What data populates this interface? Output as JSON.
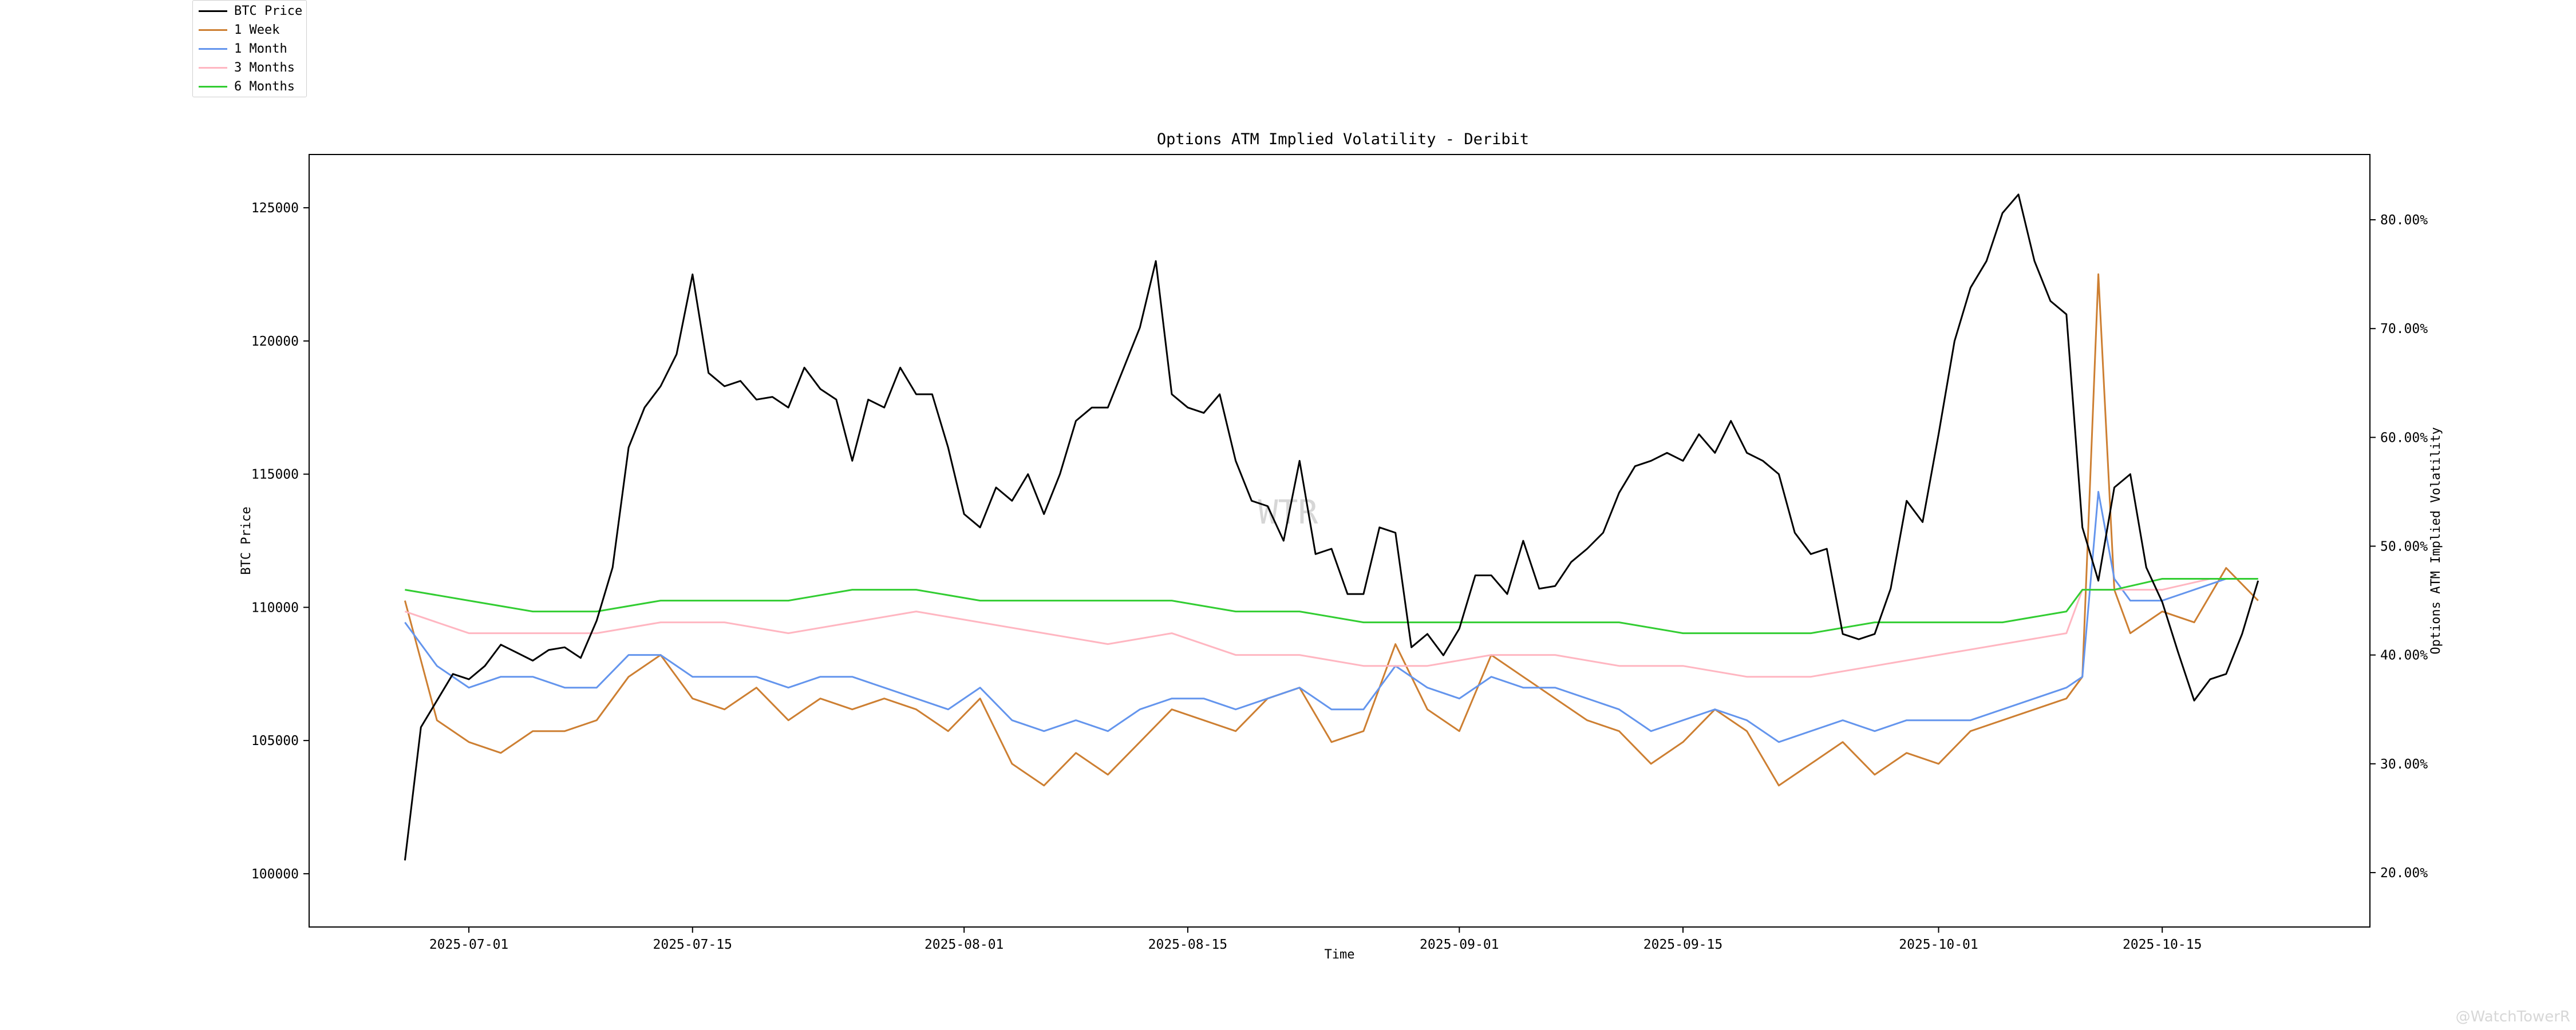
{
  "chart_data": {
    "type": "line",
    "title": "Options ATM Implied Volatility - Deribit",
    "xlabel": "Time",
    "ylabel": "BTC Price",
    "y2label": "Options ATM Implied Volatility",
    "watermark": "WTR",
    "corner_watermark": "@WatchTowerR",
    "x_ticks": [
      "2025-07-01",
      "2025-07-15",
      "2025-08-01",
      "2025-08-15",
      "2025-09-01",
      "2025-09-15",
      "2025-10-01",
      "2025-10-15"
    ],
    "xlim": [
      "2025-06-21",
      "2025-10-28"
    ],
    "ylim": [
      98000,
      127000
    ],
    "y_ticks": [
      "100000",
      "105000",
      "110000",
      "115000",
      "120000",
      "125000"
    ],
    "y2lim": [
      15,
      86
    ],
    "y2_ticks": [
      "20.00%",
      "30.00%",
      "40.00%",
      "50.00%",
      "60.00%",
      "70.00%",
      "80.00%"
    ],
    "grid": false,
    "legend_position": "top-left",
    "btc_price": {
      "name": "BTC Price",
      "color": "#000000",
      "axis": "left",
      "x": [
        "2025-06-27",
        "2025-06-28",
        "2025-06-29",
        "2025-06-30",
        "2025-07-01",
        "2025-07-02",
        "2025-07-03",
        "2025-07-04",
        "2025-07-05",
        "2025-07-06",
        "2025-07-07",
        "2025-07-08",
        "2025-07-09",
        "2025-07-10",
        "2025-07-11",
        "2025-07-12",
        "2025-07-13",
        "2025-07-14",
        "2025-07-15",
        "2025-07-16",
        "2025-07-17",
        "2025-07-18",
        "2025-07-19",
        "2025-07-20",
        "2025-07-21",
        "2025-07-22",
        "2025-07-23",
        "2025-07-24",
        "2025-07-25",
        "2025-07-26",
        "2025-07-27",
        "2025-07-28",
        "2025-07-29",
        "2025-07-30",
        "2025-07-31",
        "2025-08-01",
        "2025-08-02",
        "2025-08-03",
        "2025-08-04",
        "2025-08-05",
        "2025-08-06",
        "2025-08-07",
        "2025-08-08",
        "2025-08-09",
        "2025-08-10",
        "2025-08-11",
        "2025-08-12",
        "2025-08-13",
        "2025-08-14",
        "2025-08-15",
        "2025-08-16",
        "2025-08-17",
        "2025-08-18",
        "2025-08-19",
        "2025-08-20",
        "2025-08-21",
        "2025-08-22",
        "2025-08-23",
        "2025-08-24",
        "2025-08-25",
        "2025-08-26",
        "2025-08-27",
        "2025-08-28",
        "2025-08-29",
        "2025-08-30",
        "2025-08-31",
        "2025-09-01",
        "2025-09-02",
        "2025-09-03",
        "2025-09-04",
        "2025-09-05",
        "2025-09-06",
        "2025-09-07",
        "2025-09-08",
        "2025-09-09",
        "2025-09-10",
        "2025-09-11",
        "2025-09-12",
        "2025-09-13",
        "2025-09-14",
        "2025-09-15",
        "2025-09-16",
        "2025-09-17",
        "2025-09-18",
        "2025-09-19",
        "2025-09-20",
        "2025-09-21",
        "2025-09-22",
        "2025-09-23",
        "2025-09-24",
        "2025-09-25",
        "2025-09-26",
        "2025-09-27",
        "2025-09-28",
        "2025-09-29",
        "2025-09-30",
        "2025-10-01",
        "2025-10-02",
        "2025-10-03",
        "2025-10-04",
        "2025-10-05",
        "2025-10-06",
        "2025-10-07",
        "2025-10-08",
        "2025-10-09",
        "2025-10-10",
        "2025-10-11",
        "2025-10-12",
        "2025-10-13",
        "2025-10-14",
        "2025-10-15",
        "2025-10-16",
        "2025-10-17",
        "2025-10-18",
        "2025-10-19",
        "2025-10-20",
        "2025-10-21"
      ],
      "y": [
        100500,
        105500,
        106500,
        107500,
        107300,
        107800,
        108600,
        108300,
        108000,
        108400,
        108500,
        108100,
        109500,
        111500,
        116000,
        117500,
        118300,
        119500,
        122500,
        118800,
        118300,
        118500,
        117800,
        117900,
        117500,
        119000,
        118200,
        117800,
        115500,
        117800,
        117500,
        119000,
        118000,
        118000,
        116000,
        113500,
        113000,
        114500,
        114000,
        115000,
        113500,
        115000,
        117000,
        117500,
        117500,
        119000,
        120500,
        123000,
        118000,
        117500,
        117300,
        118000,
        115500,
        114000,
        113800,
        112500,
        115500,
        112000,
        112200,
        110500,
        110500,
        113000,
        112800,
        108500,
        109000,
        108200,
        109200,
        111200,
        111200,
        110500,
        112500,
        110700,
        110800,
        111700,
        112200,
        112800,
        114300,
        115300,
        115500,
        115800,
        115500,
        116500,
        115800,
        117000,
        115800,
        115500,
        115000,
        112800,
        112000,
        112200,
        109000,
        108800,
        109000,
        110700,
        114000,
        113200,
        116500,
        120000,
        122000,
        123000,
        124800,
        125500,
        123000,
        121500,
        121000,
        113000,
        111000,
        114500,
        115000,
        111500,
        110200,
        108300,
        106500,
        107300,
        107500,
        109000,
        111000
      ]
    },
    "iv_series": [
      {
        "name": "1 Week",
        "color": "#cd7f32",
        "axis": "right",
        "x": [
          "2025-06-27",
          "2025-06-29",
          "2025-07-01",
          "2025-07-03",
          "2025-07-05",
          "2025-07-07",
          "2025-07-09",
          "2025-07-11",
          "2025-07-13",
          "2025-07-15",
          "2025-07-17",
          "2025-07-19",
          "2025-07-21",
          "2025-07-23",
          "2025-07-25",
          "2025-07-27",
          "2025-07-29",
          "2025-07-31",
          "2025-08-02",
          "2025-08-04",
          "2025-08-06",
          "2025-08-08",
          "2025-08-10",
          "2025-08-12",
          "2025-08-14",
          "2025-08-16",
          "2025-08-18",
          "2025-08-20",
          "2025-08-22",
          "2025-08-24",
          "2025-08-26",
          "2025-08-28",
          "2025-08-30",
          "2025-09-01",
          "2025-09-03",
          "2025-09-05",
          "2025-09-07",
          "2025-09-09",
          "2025-09-11",
          "2025-09-13",
          "2025-09-15",
          "2025-09-17",
          "2025-09-19",
          "2025-09-21",
          "2025-09-23",
          "2025-09-25",
          "2025-09-27",
          "2025-09-29",
          "2025-10-01",
          "2025-10-03",
          "2025-10-05",
          "2025-10-07",
          "2025-10-09",
          "2025-10-10",
          "2025-10-11",
          "2025-10-12",
          "2025-10-13",
          "2025-10-15",
          "2025-10-17",
          "2025-10-19",
          "2025-10-21"
        ],
        "y": [
          45,
          34,
          32,
          31,
          33,
          33,
          34,
          38,
          40,
          36,
          35,
          37,
          34,
          36,
          35,
          36,
          35,
          33,
          36,
          30,
          28,
          31,
          29,
          32,
          35,
          34,
          33,
          36,
          37,
          32,
          33,
          41,
          35,
          33,
          40,
          38,
          36,
          34,
          33,
          30,
          32,
          35,
          33,
          28,
          30,
          32,
          29,
          31,
          30,
          33,
          34,
          35,
          36,
          38,
          75,
          46,
          42,
          44,
          43,
          48,
          45
        ]
      },
      {
        "name": "1 Month",
        "color": "#6495ed",
        "axis": "right",
        "x": [
          "2025-06-27",
          "2025-06-29",
          "2025-07-01",
          "2025-07-03",
          "2025-07-05",
          "2025-07-07",
          "2025-07-09",
          "2025-07-11",
          "2025-07-13",
          "2025-07-15",
          "2025-07-17",
          "2025-07-19",
          "2025-07-21",
          "2025-07-23",
          "2025-07-25",
          "2025-07-27",
          "2025-07-29",
          "2025-07-31",
          "2025-08-02",
          "2025-08-04",
          "2025-08-06",
          "2025-08-08",
          "2025-08-10",
          "2025-08-12",
          "2025-08-14",
          "2025-08-16",
          "2025-08-18",
          "2025-08-20",
          "2025-08-22",
          "2025-08-24",
          "2025-08-26",
          "2025-08-28",
          "2025-08-30",
          "2025-09-01",
          "2025-09-03",
          "2025-09-05",
          "2025-09-07",
          "2025-09-09",
          "2025-09-11",
          "2025-09-13",
          "2025-09-15",
          "2025-09-17",
          "2025-09-19",
          "2025-09-21",
          "2025-09-23",
          "2025-09-25",
          "2025-09-27",
          "2025-09-29",
          "2025-10-01",
          "2025-10-03",
          "2025-10-05",
          "2025-10-07",
          "2025-10-09",
          "2025-10-10",
          "2025-10-11",
          "2025-10-12",
          "2025-10-13",
          "2025-10-15",
          "2025-10-17",
          "2025-10-19",
          "2025-10-21"
        ],
        "y": [
          43,
          39,
          37,
          38,
          38,
          37,
          37,
          40,
          40,
          38,
          38,
          38,
          37,
          38,
          38,
          37,
          36,
          35,
          37,
          34,
          33,
          34,
          33,
          35,
          36,
          36,
          35,
          36,
          37,
          35,
          35,
          39,
          37,
          36,
          38,
          37,
          37,
          36,
          35,
          33,
          34,
          35,
          34,
          32,
          33,
          34,
          33,
          34,
          34,
          34,
          35,
          36,
          37,
          38,
          55,
          47,
          45,
          45,
          46,
          47,
          47
        ]
      },
      {
        "name": "3 Months",
        "color": "#ffb6c1",
        "axis": "right",
        "x": [
          "2025-06-27",
          "2025-07-01",
          "2025-07-05",
          "2025-07-09",
          "2025-07-13",
          "2025-07-17",
          "2025-07-21",
          "2025-07-25",
          "2025-07-29",
          "2025-08-02",
          "2025-08-06",
          "2025-08-10",
          "2025-08-14",
          "2025-08-18",
          "2025-08-22",
          "2025-08-26",
          "2025-08-30",
          "2025-09-03",
          "2025-09-07",
          "2025-09-11",
          "2025-09-15",
          "2025-09-19",
          "2025-09-23",
          "2025-09-27",
          "2025-10-01",
          "2025-10-05",
          "2025-10-09",
          "2025-10-10",
          "2025-10-12",
          "2025-10-15",
          "2025-10-18",
          "2025-10-21"
        ],
        "y": [
          44,
          42,
          42,
          42,
          43,
          43,
          42,
          43,
          44,
          43,
          42,
          41,
          42,
          40,
          40,
          39,
          39,
          40,
          40,
          39,
          39,
          38,
          38,
          39,
          40,
          41,
          42,
          46,
          46,
          46,
          47,
          47
        ]
      },
      {
        "name": "6 Months",
        "color": "#32cd32",
        "axis": "right",
        "x": [
          "2025-06-27",
          "2025-07-01",
          "2025-07-05",
          "2025-07-09",
          "2025-07-13",
          "2025-07-17",
          "2025-07-21",
          "2025-07-25",
          "2025-07-29",
          "2025-08-02",
          "2025-08-06",
          "2025-08-10",
          "2025-08-14",
          "2025-08-18",
          "2025-08-22",
          "2025-08-26",
          "2025-08-30",
          "2025-09-03",
          "2025-09-07",
          "2025-09-11",
          "2025-09-15",
          "2025-09-19",
          "2025-09-23",
          "2025-09-27",
          "2025-10-01",
          "2025-10-05",
          "2025-10-09",
          "2025-10-10",
          "2025-10-12",
          "2025-10-15",
          "2025-10-18",
          "2025-10-21"
        ],
        "y": [
          46,
          45,
          44,
          44,
          45,
          45,
          45,
          46,
          46,
          45,
          45,
          45,
          45,
          44,
          44,
          43,
          43,
          43,
          43,
          43,
          42,
          42,
          42,
          43,
          43,
          43,
          44,
          46,
          46,
          47,
          47,
          47
        ]
      }
    ]
  }
}
